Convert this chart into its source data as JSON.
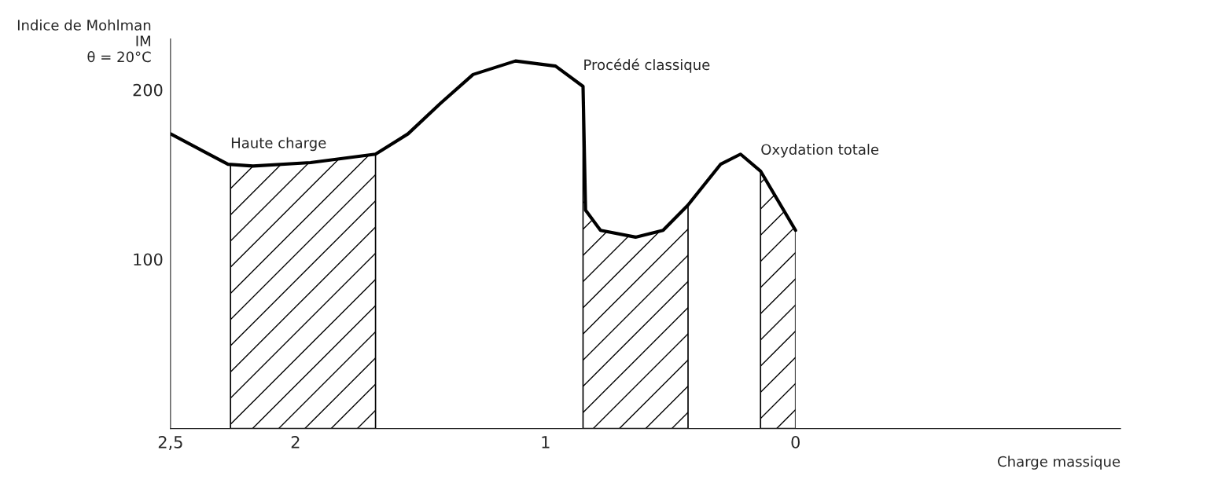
{
  "chart_data": {
    "type": "line",
    "xlabel": "Charge massique",
    "ylabel": "Indice de Mohlman\nIM\nθ = 20°C",
    "series": [
      {
        "color": "#000000",
        "x": [
          2.5,
          2.27,
          2.17,
          1.94,
          1.68,
          1.55,
          1.42,
          1.29,
          1.12,
          0.96,
          0.85,
          0.84,
          0.78,
          0.64,
          0.53,
          0.43,
          0.3,
          0.22,
          0.14,
          0
        ],
        "values": [
          174,
          156,
          155,
          157,
          162,
          174,
          192,
          209,
          217,
          214,
          202,
          129,
          117,
          113,
          117,
          132,
          156,
          162,
          152,
          117
        ]
      }
    ],
    "xlim": [
      2.5,
      -1.3
    ],
    "xticks": [
      {
        "value": 2.5,
        "label": "2,5"
      },
      2,
      1,
      0
    ],
    "ylim": [
      0,
      230
    ],
    "yticks": [
      100,
      200
    ],
    "bands": [
      {
        "axis": "x",
        "from": 2.26,
        "to": 1.68,
        "label": "Haute charge"
      },
      {
        "axis": "x",
        "from": 0.85,
        "to": 0.43,
        "label": "Procédé classique"
      },
      {
        "axis": "x",
        "from": 0.14,
        "to": 0,
        "label": "Oxydation totale"
      }
    ],
    "grid": false,
    "legend": false
  }
}
